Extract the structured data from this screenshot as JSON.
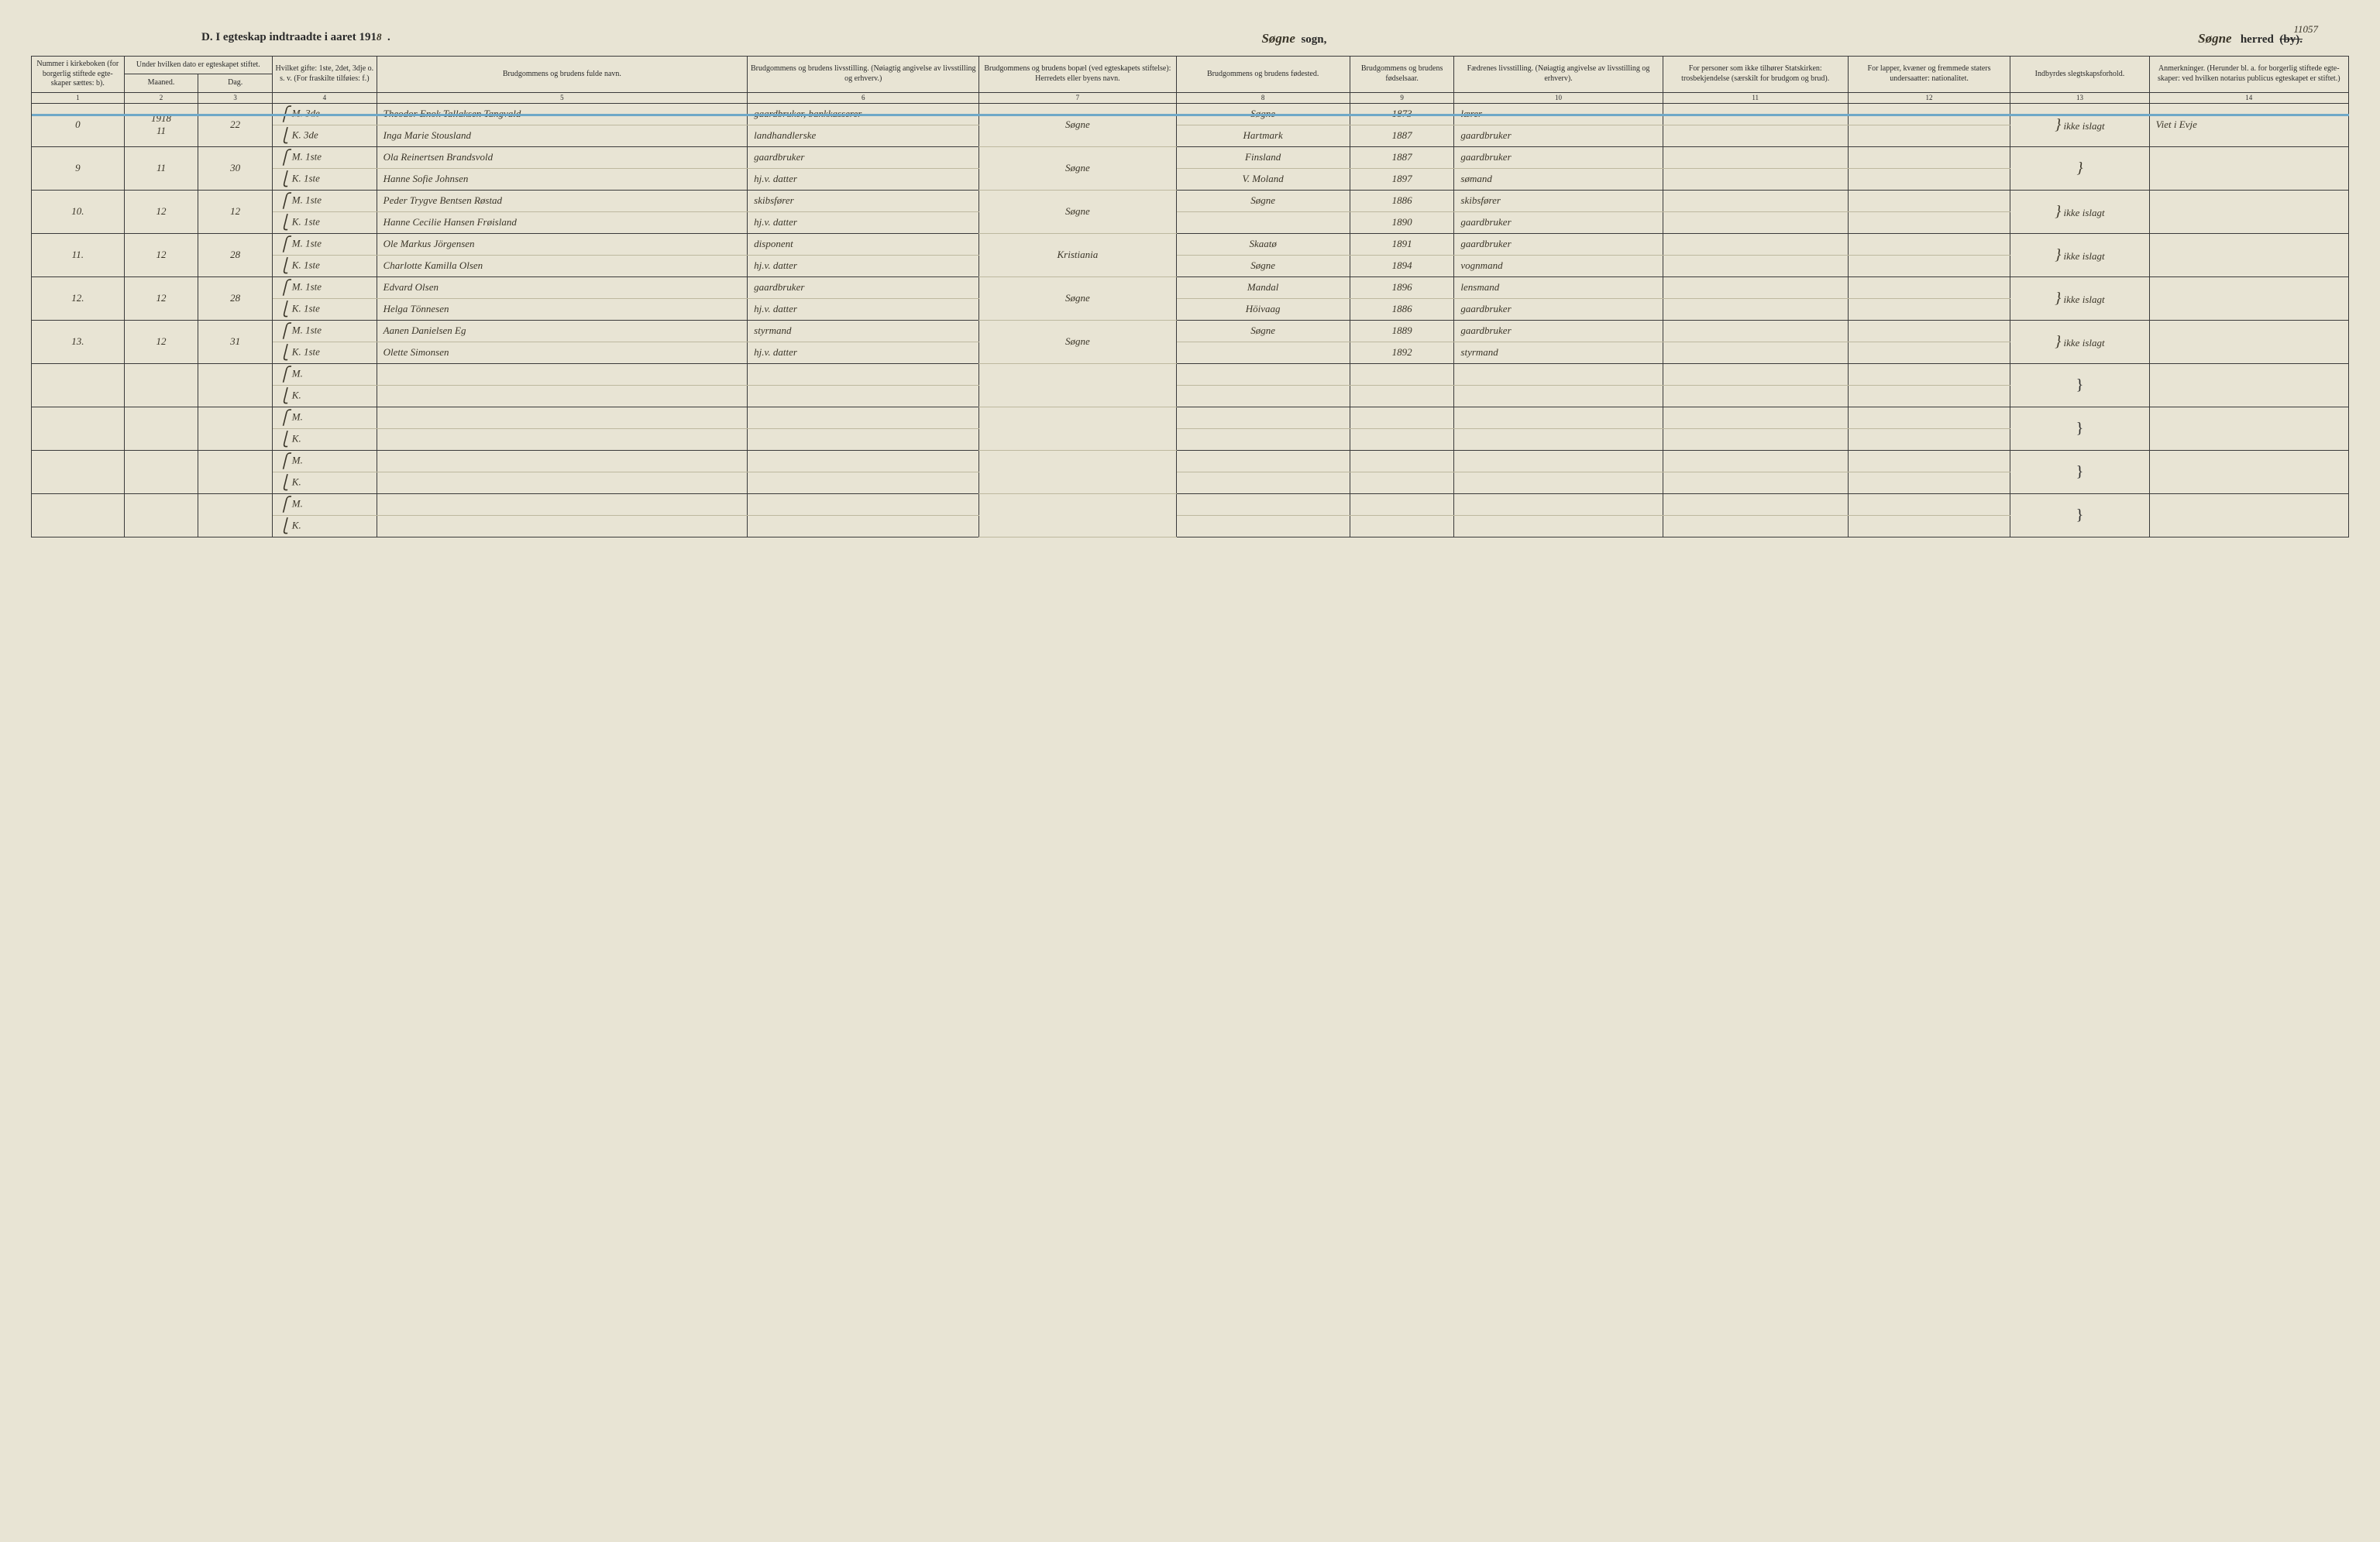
{
  "pageNumber": "11057",
  "heading": {
    "left_prefix": "D.   I egteskap indtraadte i aaret 191",
    "year_digit": "8",
    "sogn_label": "sogn,",
    "sogn_name": "Søgne",
    "herred_label": "herred",
    "herred_struck": "(by).",
    "herred_name": "Søgne"
  },
  "columns": {
    "c1": "Nummer i kirke­boken (for bor­gerlig stiftede egte­skaper sættes: b).",
    "c2": "Under hvilken dato er egte­skapet stiftet.",
    "c2a": "Maaned.",
    "c2b": "Dag.",
    "c3": "Hvilket gifte: 1ste, 2det, 3dje o. s. v. (For fraskilte tilføies: f.)",
    "c4": "Brudgommens og brudens fulde navn.",
    "c5": "Brudgommens og brudens livsstilling. (Nøiagtig angivelse av livsstilling og erhverv.)",
    "c6": "Brudgommens og brudens bopæl (ved egteskapets stiftelse): Herredets eller byens navn.",
    "c7": "Brudgommens og brudens fødested.",
    "c8": "Brudgom­mens og brudens fødsels­aar.",
    "c9": "Fædrenes livsstilling. (Nøiagtig angivelse av livsstilling og erhverv).",
    "c10": "For personer som ikke tilhører Statskirken: trosbekjendelse (særskilt for brudgom og brud).",
    "c11": "For lapper, kvæner og fremmede staters undersaatter: nationalitet.",
    "c12": "Indbyrdes slegtskapsforhold.",
    "c13": "Anmerkninger. (Herunder bl. a. for borgerlig stiftede egte­skaper: ved hvilken notarius publicus egteskapet er stiftet.)"
  },
  "colnums": [
    "1",
    "2",
    "3",
    "4",
    "5",
    "6",
    "7",
    "8",
    "9",
    "10",
    "11",
    "12",
    "13",
    "14"
  ],
  "rows": [
    {
      "num": "0",
      "year": "1918",
      "maaned": "11",
      "dag": "22",
      "m": {
        "mk": "M.",
        "gifte": "3de",
        "navn": "Theodor Enok Tallaksen Tangvald",
        "stilling": "gaardbruker, bankkasserer",
        "bopel": "Søgne",
        "fodested": "Søgne",
        "aar": "1873",
        "fader": "lærer"
      },
      "k": {
        "mk": "K.",
        "gifte": "3de",
        "navn": "Inga Marie Stousland",
        "stilling": "landhandlerske",
        "bopel": "Hartmark / Søgne",
        "bopel_struck": "Hartmark",
        "fodested": "Hartmark",
        "aar": "1887",
        "fader": "gaardbruker"
      },
      "col13": "ikke islagt",
      "col14": "Viet i Evje",
      "blue": true
    },
    {
      "num": "9",
      "maaned": "11",
      "dag": "30",
      "m": {
        "mk": "M.",
        "gifte": "1ste",
        "navn": "Ola Reinertsen Brandsvold",
        "stilling": "gaardbruker",
        "bopel": "Søgne",
        "fodested": "Finsland",
        "aar": "1887",
        "fader": "gaardbruker"
      },
      "k": {
        "mk": "K.",
        "gifte": "1ste",
        "navn": "Hanne Sofie Johnsen",
        "stilling": "hj.v. datter",
        "bopel": "",
        "fodested": "V. Moland",
        "aar": "1897",
        "fader": "sømand"
      },
      "col13": "",
      "col14": ""
    },
    {
      "num": "10.",
      "maaned": "12",
      "dag": "12",
      "m": {
        "mk": "M.",
        "gifte": "1ste",
        "navn": "Peder Trygve Bentsen Røstad",
        "stilling": "skibsfører",
        "bopel": "Søgne",
        "fodested": "Søgne",
        "aar": "1886",
        "fader": "skibsfører"
      },
      "k": {
        "mk": "K.",
        "gifte": "1ste",
        "navn": "Hanne Cecilie Hansen Frøisland",
        "stilling": "hj.v. datter",
        "bopel": "",
        "fodested": "",
        "aar": "1890",
        "fader": "gaardbruker"
      },
      "col13": "ikke islagt",
      "col14": ""
    },
    {
      "num": "11.",
      "maaned": "12",
      "dag": "28",
      "m": {
        "mk": "M.",
        "gifte": "1ste",
        "navn": "Ole Markus Jörgensen",
        "stilling": "disponent",
        "bopel": "Kristiania",
        "fodested": "Skaatø",
        "aar": "1891",
        "fader": "gaardbruker"
      },
      "k": {
        "mk": "K.",
        "gifte": "1ste",
        "navn": "Charlotte Kamilla Olsen",
        "stilling": "hj.v. datter",
        "bopel": "Søgne",
        "fodested": "Søgne",
        "aar": "1894",
        "fader": "vognmand"
      },
      "col13": "ikke islagt",
      "col14": ""
    },
    {
      "num": "12.",
      "maaned": "12",
      "dag": "28",
      "m": {
        "mk": "M.",
        "gifte": "1ste",
        "navn": "Edvard Olsen",
        "stilling": "gaardbruker",
        "bopel": "Søgne",
        "fodested": "Mandal",
        "aar": "1896",
        "fader": "lensmand"
      },
      "k": {
        "mk": "K.",
        "gifte": "1ste",
        "navn": "Helga Tönnesen",
        "stilling": "hj.v. datter",
        "bopel": "Höivaag",
        "fodested": "Höivaag",
        "aar": "1886",
        "fader": "gaardbruker"
      },
      "col13": "ikke islagt",
      "col14": ""
    },
    {
      "num": "13.",
      "maaned": "12",
      "dag": "31",
      "m": {
        "mk": "M.",
        "gifte": "1ste",
        "navn": "Aanen Danielsen Eg",
        "stilling": "styrmand",
        "bopel": "Søgne",
        "fodested": "Søgne",
        "aar": "1889",
        "fader": "gaardbruker"
      },
      "k": {
        "mk": "K.",
        "gifte": "1ste",
        "navn": "Olette Simonsen",
        "stilling": "hj.v. datter",
        "bopel": "",
        "fodested": "",
        "aar": "1892",
        "fader": "styrmand"
      },
      "col13": "ikke islagt",
      "col14": ""
    }
  ],
  "blankRows": 4,
  "mk_labels": {
    "m": "M.",
    "k": "K."
  },
  "style": {
    "paper_bg": "#e8e4d4",
    "ink": "#2a2a2a",
    "handwriting": "#3a3528",
    "rule": "#3a3a3a",
    "faint_rule": "#bdb89f",
    "blue_pencil": "#6fa8c7",
    "header_fontsize_pt": 10,
    "body_fontsize_pt": 13,
    "col_widths_pct": [
      4,
      3.2,
      3.2,
      4.5,
      16,
      10,
      8.5,
      7.5,
      4.5,
      9,
      8,
      7,
      6,
      8.6
    ]
  }
}
